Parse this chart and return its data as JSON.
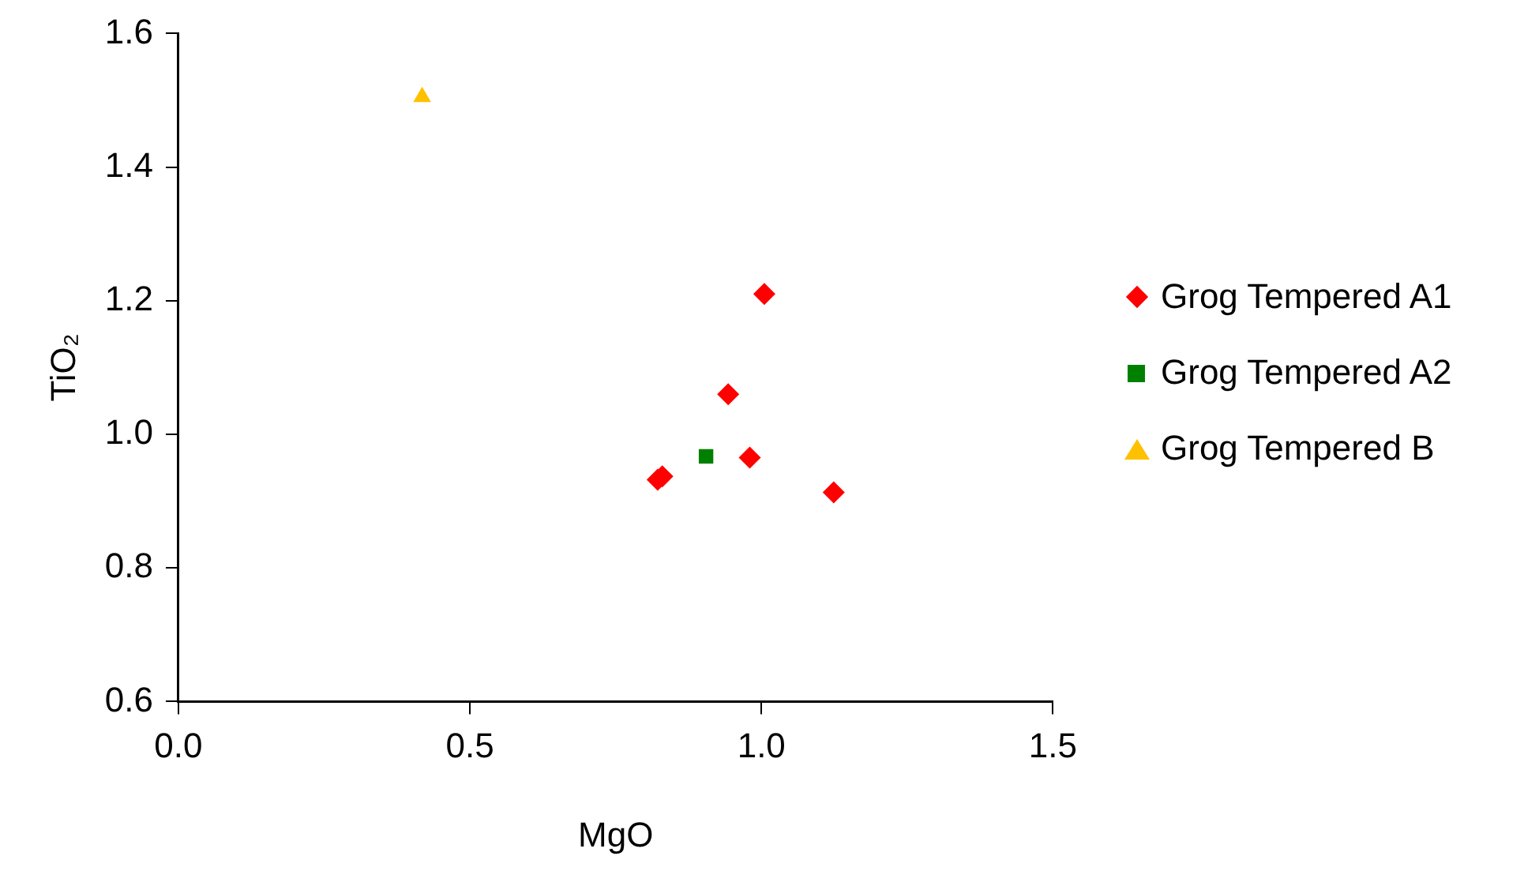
{
  "chart_data": {
    "type": "scatter",
    "xlabel": "MgO",
    "ylabel": "TiO₂",
    "xlim": [
      0,
      1.5
    ],
    "xticks": [
      {
        "value": 0,
        "label": "0.0"
      },
      0.5,
      {
        "value": 1,
        "label": "1.0"
      },
      1.5
    ],
    "ylim": [
      0.6,
      1.6
    ],
    "yticks": [
      0.6,
      0.8,
      {
        "value": 1,
        "label": "1.0"
      },
      1.2,
      1.4,
      1.6
    ],
    "grid": false,
    "legend": "right",
    "series": [
      {
        "name": "Grog Tempered A1",
        "color": "#ff0000",
        "marker": "diamond",
        "x": [
          1.005,
          0.943,
          0.98,
          0.822,
          0.83,
          1.124
        ],
        "values": [
          1.21,
          1.06,
          0.965,
          0.932,
          0.937,
          0.913
        ]
      },
      {
        "name": "Grog Tempered A2",
        "color": "#008000",
        "marker": "square",
        "x": [
          0.905
        ],
        "values": [
          0.967
        ]
      },
      {
        "name": "Grog Tempered B",
        "color": "#ffc000",
        "marker": "triangle",
        "x": [
          0.418
        ],
        "values": [
          1.505
        ]
      }
    ]
  }
}
